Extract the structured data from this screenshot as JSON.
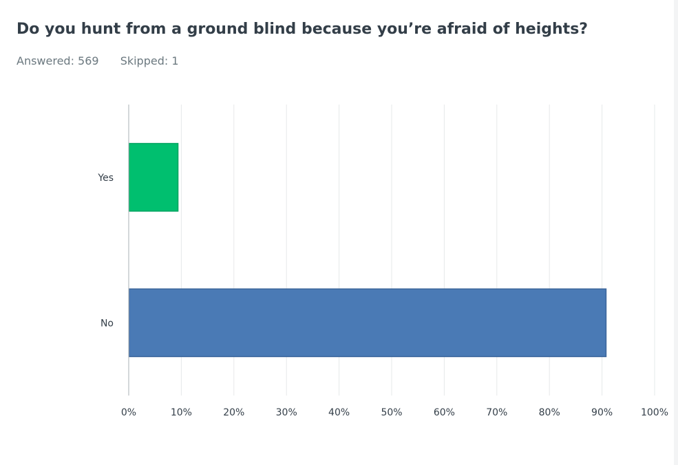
{
  "question": {
    "title": "Do you hunt from a ground blind because you’re afraid of heights?",
    "answered": "Answered: 569",
    "skipped": "Skipped: 1"
  },
  "chart_data": {
    "type": "bar",
    "orientation": "horizontal",
    "categories": [
      "Yes",
      "No"
    ],
    "values": [
      9.3,
      90.7
    ],
    "colors": [
      "#00bf6f",
      "#4a7ab5"
    ],
    "xlim": [
      0,
      100
    ],
    "ticks": [
      "0%",
      "10%",
      "20%",
      "30%",
      "40%",
      "50%",
      "60%",
      "70%",
      "80%",
      "90%",
      "100%"
    ],
    "grid": true,
    "unit": "%"
  }
}
